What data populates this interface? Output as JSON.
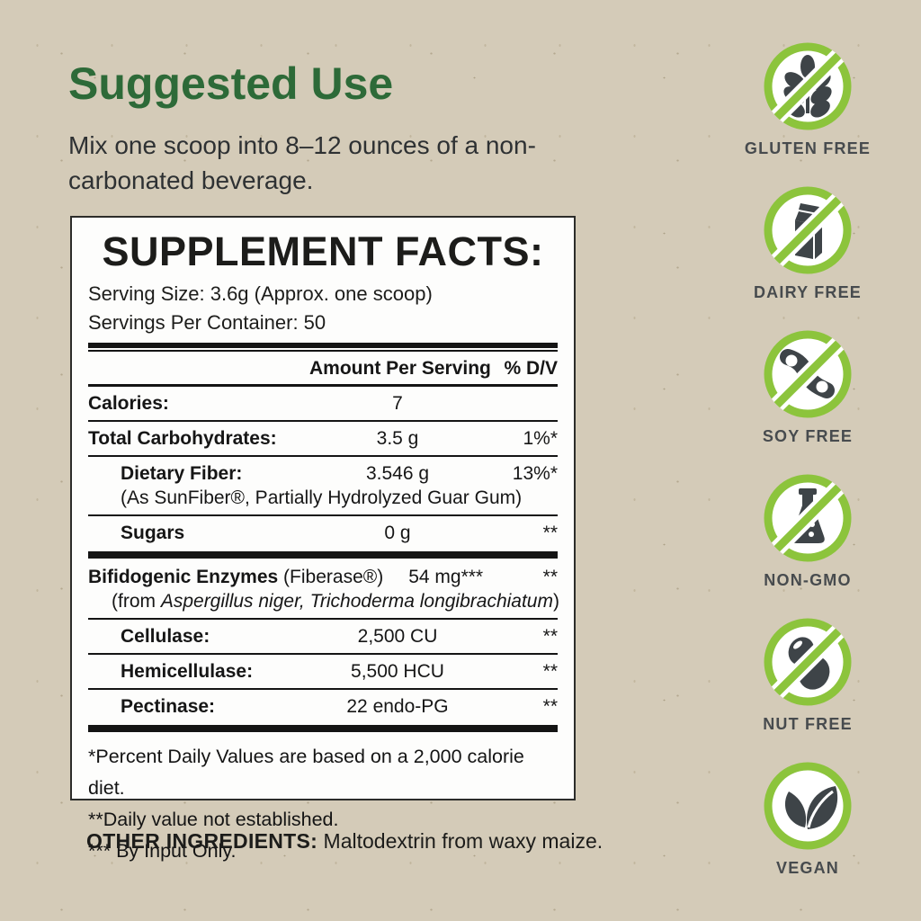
{
  "colors": {
    "background": "#d4cbb8",
    "heading_green": "#2d6a38",
    "badge_ring_green": "#8cc43c",
    "icon_gray": "#3e4448",
    "label_gray": "#474b4e",
    "panel_white": "#fdfdfc",
    "rule_black": "#141414"
  },
  "suggested_use": {
    "title": "Suggested Use",
    "body": "Mix one scoop into 8–12 ounces of a non-carbonated beverage."
  },
  "supplement_facts": {
    "title": "SUPPLEMENT FACTS:",
    "serving_size": "Serving Size: 3.6g (Approx. one scoop)",
    "servings_per_container": "Servings Per Container: 50",
    "columns": {
      "amount": "Amount Per Serving",
      "dv": "% D/V"
    },
    "rows": [
      {
        "name": "Calories:",
        "amount": "7",
        "dv": "",
        "indent": false,
        "after": "thin"
      },
      {
        "name": "Total Carbohydrates:",
        "amount": "3.5 g",
        "dv": "1%*",
        "indent": false,
        "after": "thin"
      },
      {
        "name": "Dietary Fiber:",
        "amount": "3.546 g",
        "dv": "13%*",
        "indent": true,
        "sub": {
          "text": "(As SunFiber®, Partially Hydrolyzed Guar Gum)"
        },
        "after": "thin"
      },
      {
        "name": "Sugars",
        "amount": "0 g",
        "dv": "**",
        "indent": true,
        "after": "thick"
      },
      {
        "name": "Bifidogenic Enzymes",
        "suffix": " (Fiberase®)",
        "amount": "54 mg***",
        "dv": "**",
        "layout": "inline",
        "sub": {
          "prefix": "(from ",
          "italic": "Aspergillus niger, Trichoderma longibrachiatum",
          "suffix": ")"
        },
        "after": "thin"
      },
      {
        "name": "Cellulase:",
        "amount": "2,500 CU",
        "dv": "**",
        "indent": true,
        "after": "thin"
      },
      {
        "name": "Hemicellulase:",
        "amount": "5,500 HCU",
        "dv": "**",
        "indent": true,
        "after": "thin"
      },
      {
        "name": "Pectinase:",
        "amount": "22 endo-PG",
        "dv": "**",
        "indent": true,
        "after": "thick"
      }
    ],
    "footnotes": [
      "*Percent Daily Values are based on a 2,000 calorie diet.",
      "**Daily value not established.",
      "*** By Input Only."
    ]
  },
  "other_ingredients": {
    "label": "OTHER INGREDIENTS:",
    "text": " Maltodextrin from waxy maize."
  },
  "badges": [
    {
      "id": "gluten-free",
      "label": "GLUTEN FREE",
      "icon": "wheat-icon",
      "slash": true
    },
    {
      "id": "dairy-free",
      "label": "DAIRY FREE",
      "icon": "milk-carton-icon",
      "slash": true
    },
    {
      "id": "soy-free",
      "label": "SOY FREE",
      "icon": "soybean-icon",
      "slash": true
    },
    {
      "id": "non-gmo",
      "label": "NON-GMO",
      "icon": "flask-icon",
      "slash": true
    },
    {
      "id": "nut-free",
      "label": "NUT FREE",
      "icon": "peanut-icon",
      "slash": true
    },
    {
      "id": "vegan",
      "label": "VEGAN",
      "icon": "leaves-icon",
      "slash": false
    }
  ]
}
